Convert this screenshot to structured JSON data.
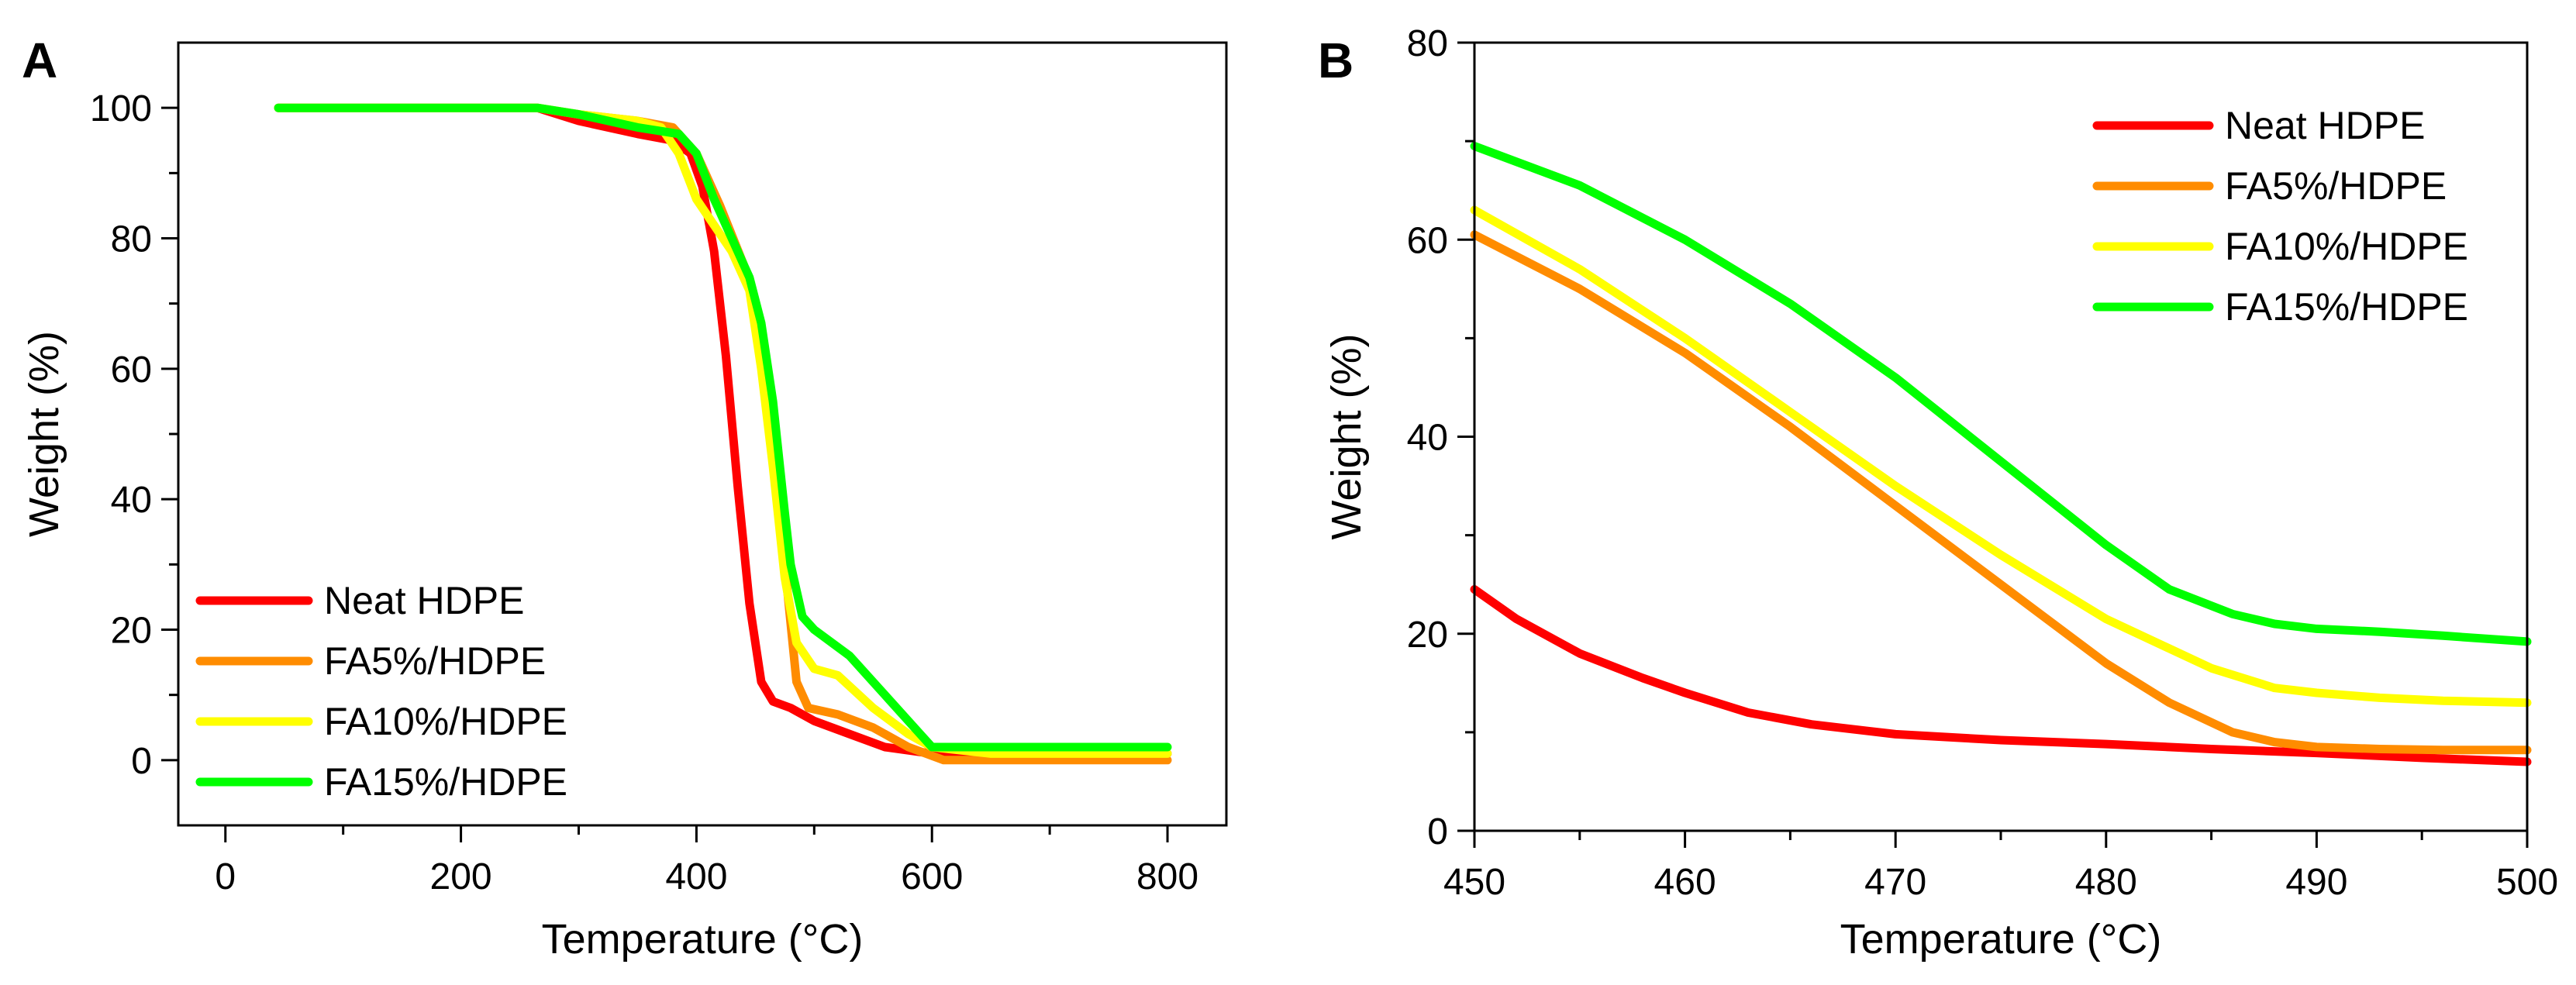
{
  "chart_data": [
    {
      "panel": "A",
      "type": "line",
      "xlabel": "Temperature (°C)",
      "ylabel": "Weight (%)",
      "xlim": [
        -40,
        850
      ],
      "ylim": [
        -10,
        110
      ],
      "xticks": [
        0,
        200,
        400,
        600,
        800
      ],
      "yticks": [
        0,
        20,
        40,
        60,
        80,
        100
      ],
      "legend_position": "bottom-left",
      "series": [
        {
          "name": "Neat HDPE",
          "color": "#ff0000",
          "x": [
            45,
            100,
            200,
            265,
            300,
            350,
            380,
            395,
            405,
            415,
            425,
            435,
            445,
            455,
            465,
            480,
            500,
            530,
            560,
            600,
            650,
            700,
            800
          ],
          "y": [
            100,
            100,
            100,
            100,
            98,
            96,
            95,
            93,
            88,
            78,
            62,
            42,
            24,
            12,
            9,
            8,
            6,
            4,
            2,
            1,
            1,
            1,
            1
          ]
        },
        {
          "name": "FA5%/HDPE",
          "color": "#ff8c00",
          "x": [
            45,
            100,
            200,
            265,
            300,
            350,
            380,
            400,
            420,
            440,
            455,
            465,
            475,
            485,
            495,
            520,
            550,
            580,
            610,
            650,
            700,
            800
          ],
          "y": [
            100,
            100,
            100,
            100,
            99,
            98,
            97,
            93,
            85,
            76,
            65,
            50,
            30,
            12,
            8,
            7,
            5,
            2,
            0,
            0,
            0,
            0
          ]
        },
        {
          "name": "FA10%/HDPE",
          "color": "#ffff00",
          "x": [
            45,
            100,
            200,
            265,
            300,
            350,
            370,
            385,
            400,
            415,
            430,
            445,
            455,
            465,
            475,
            485,
            500,
            520,
            550,
            580,
            600,
            650,
            700,
            800
          ],
          "y": [
            100,
            100,
            100,
            100,
            99,
            98,
            97,
            93,
            86,
            82,
            78,
            72,
            60,
            45,
            28,
            18,
            14,
            13,
            8,
            4,
            2,
            1,
            1,
            1
          ]
        },
        {
          "name": "FA15%/HDPE",
          "color": "#00ff00",
          "x": [
            45,
            100,
            200,
            265,
            300,
            350,
            385,
            400,
            415,
            430,
            445,
            455,
            465,
            475,
            480,
            490,
            500,
            530,
            560,
            590,
            600,
            650,
            700,
            800
          ],
          "y": [
            100,
            100,
            100,
            100,
            99,
            97,
            96,
            93,
            86,
            80,
            74,
            67,
            55,
            38,
            30,
            22,
            20,
            16,
            10,
            4,
            2,
            2,
            2,
            2
          ]
        }
      ]
    },
    {
      "panel": "B",
      "type": "line",
      "xlabel": "Temperature (°C)",
      "ylabel": "Weight (%)",
      "xlim": [
        450,
        500
      ],
      "ylim": [
        0,
        80
      ],
      "xticks": [
        450,
        460,
        470,
        480,
        490,
        500
      ],
      "yticks": [
        0,
        20,
        40,
        60,
        80
      ],
      "legend_position": "top-right",
      "series": [
        {
          "name": "Neat HDPE",
          "color": "#ff0000",
          "x": [
            450,
            452,
            455,
            458,
            460,
            463,
            466,
            470,
            475,
            480,
            485,
            490,
            495,
            500
          ],
          "y": [
            24.5,
            21.5,
            18,
            15.5,
            14,
            12,
            10.8,
            9.8,
            9.2,
            8.8,
            8.3,
            7.9,
            7.4,
            7
          ]
        },
        {
          "name": "FA5%/HDPE",
          "color": "#ff8c00",
          "x": [
            450,
            455,
            460,
            465,
            470,
            475,
            480,
            483,
            486,
            488,
            490,
            493,
            496,
            500
          ],
          "y": [
            60.5,
            55,
            48.5,
            41,
            33,
            25,
            17,
            13,
            10,
            9,
            8.5,
            8.3,
            8.2,
            8.2
          ]
        },
        {
          "name": "FA10%/HDPE",
          "color": "#ffff00",
          "x": [
            450,
            455,
            460,
            465,
            470,
            475,
            480,
            485,
            488,
            490,
            493,
            496,
            500
          ],
          "y": [
            63,
            57,
            50,
            42.5,
            35,
            28,
            21.5,
            16.5,
            14.5,
            14,
            13.5,
            13.2,
            13
          ]
        },
        {
          "name": "FA15%/HDPE",
          "color": "#00ff00",
          "x": [
            450,
            455,
            460,
            465,
            470,
            475,
            480,
            483,
            486,
            488,
            490,
            493,
            496,
            500
          ],
          "y": [
            69.5,
            65.5,
            60,
            53.5,
            46,
            37.5,
            29,
            24.5,
            22,
            21,
            20.5,
            20.2,
            19.8,
            19.2
          ]
        }
      ]
    }
  ]
}
